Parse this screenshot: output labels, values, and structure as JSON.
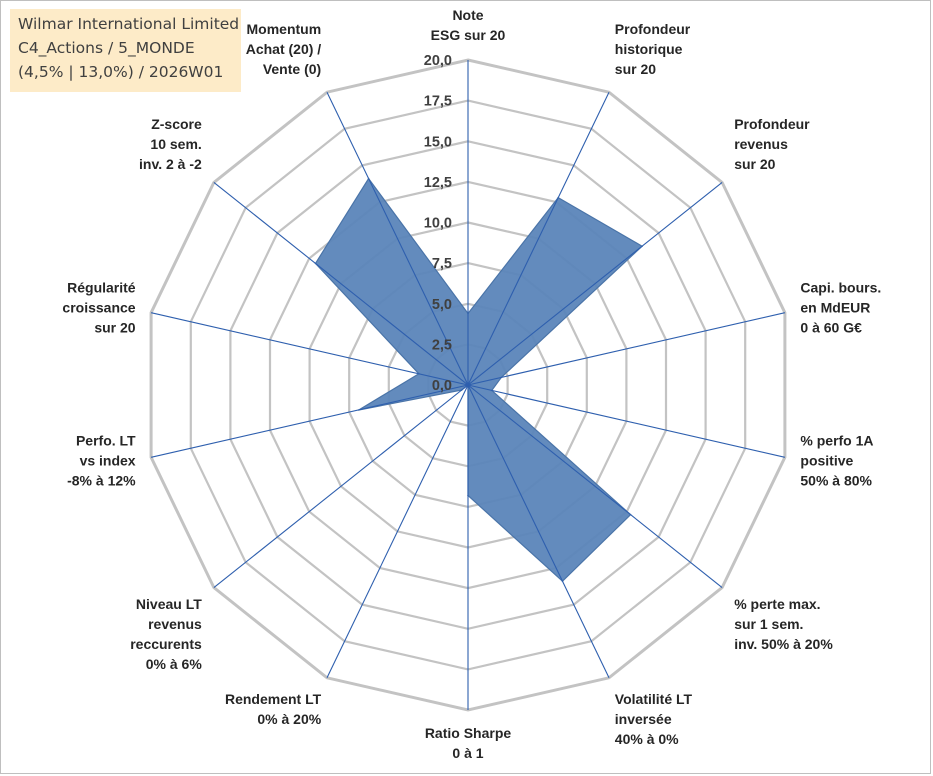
{
  "info_box": {
    "line1": "Wilmar International Limited",
    "line2": "C4_Actions / 5_MONDE",
    "line3": "(4,5% | 13,0%) / 2026W01"
  },
  "colors": {
    "fill": "#5b85b9",
    "outline": "#4a74a8",
    "spoke": "#2e5fae",
    "grid": "#c3c3c3",
    "info_bg": "#fdebc8"
  },
  "chart_data": {
    "type": "radar",
    "title": "",
    "r_range": [
      0,
      20
    ],
    "grid_levels": [
      0,
      2.5,
      5,
      7.5,
      10,
      12.5,
      15,
      17.5,
      20
    ],
    "tick_labels": [
      "0,0",
      "2,5",
      "5,0",
      "7,5",
      "10,0",
      "12,5",
      "15,0",
      "17,5",
      "20,0"
    ],
    "axes": [
      [
        "Note",
        "ESG sur 20"
      ],
      [
        "Profondeur",
        "historique",
        "sur 20"
      ],
      [
        "Profondeur",
        "revenus",
        "sur 20"
      ],
      [
        "Capi. bours.",
        "en MdEUR",
        "0 à 60 G€"
      ],
      [
        "% perfo 1A",
        "positive",
        "50% à 80%"
      ],
      [
        "% perte max.",
        "sur 1 sem.",
        "inv. 50% à 20%"
      ],
      [
        "Volatilité LT",
        "inversée",
        "40% à 0%"
      ],
      [
        "Ratio Sharpe",
        "0 à 1"
      ],
      [
        "Rendement LT",
        "0% à 20%"
      ],
      [
        "Niveau LT",
        "revenus",
        "reccurents",
        "0% à 6%"
      ],
      [
        "Perfo. LT",
        "vs index",
        "-8% à 12%"
      ],
      [
        "Régularité",
        "croissance",
        "sur 20"
      ],
      [
        "Z-score",
        "10 sem.",
        "inv. 2 à -2"
      ],
      [
        "Momentum",
        "Achat (20) /",
        "Vente (0)"
      ]
    ],
    "series": [
      {
        "name": "Wilmar International Limited",
        "values": [
          4.4,
          12.8,
          13.7,
          2.1,
          1.5,
          12.8,
          13.4,
          6.8,
          0,
          0.5,
          6.9,
          3.1,
          12.0,
          14.1
        ]
      }
    ]
  }
}
